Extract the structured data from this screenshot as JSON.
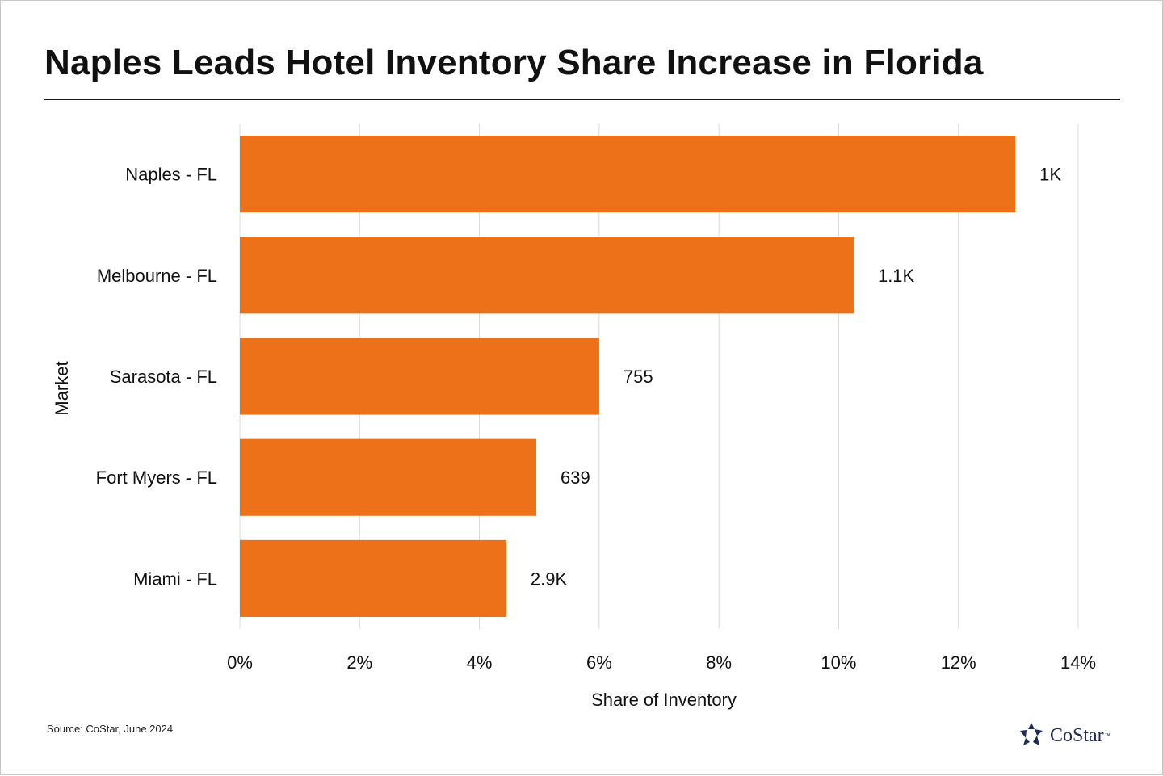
{
  "page": {
    "title": "Naples Leads Hotel Inventory Share Increase in Florida",
    "source": "Source: CoStar, June 2024",
    "logo_text": "CoStar",
    "logo_tm": "™"
  },
  "colors": {
    "bar": "#EC7118",
    "grid": "#dcdcdc",
    "text": "#111111",
    "logo": "#1f2a5a"
  },
  "chart_data": {
    "type": "bar",
    "orientation": "horizontal",
    "xlabel": "Share of Inventory",
    "ylabel": "Market",
    "xlim": [
      0,
      14
    ],
    "x_ticks": [
      0,
      2,
      4,
      6,
      8,
      10,
      12,
      14
    ],
    "x_tick_labels": [
      "0%",
      "2%",
      "4%",
      "6%",
      "8%",
      "10%",
      "12%",
      "14%"
    ],
    "grid": true,
    "categories": [
      "Naples - FL",
      "Melbourne - FL",
      "Sarasota - FL",
      "Fort Myers - FL",
      "Miami - FL"
    ],
    "values": [
      12.95,
      10.25,
      6.0,
      4.95,
      4.45
    ],
    "data_labels": [
      "1K",
      "1.1K",
      "755",
      "639",
      "2.9K"
    ]
  }
}
